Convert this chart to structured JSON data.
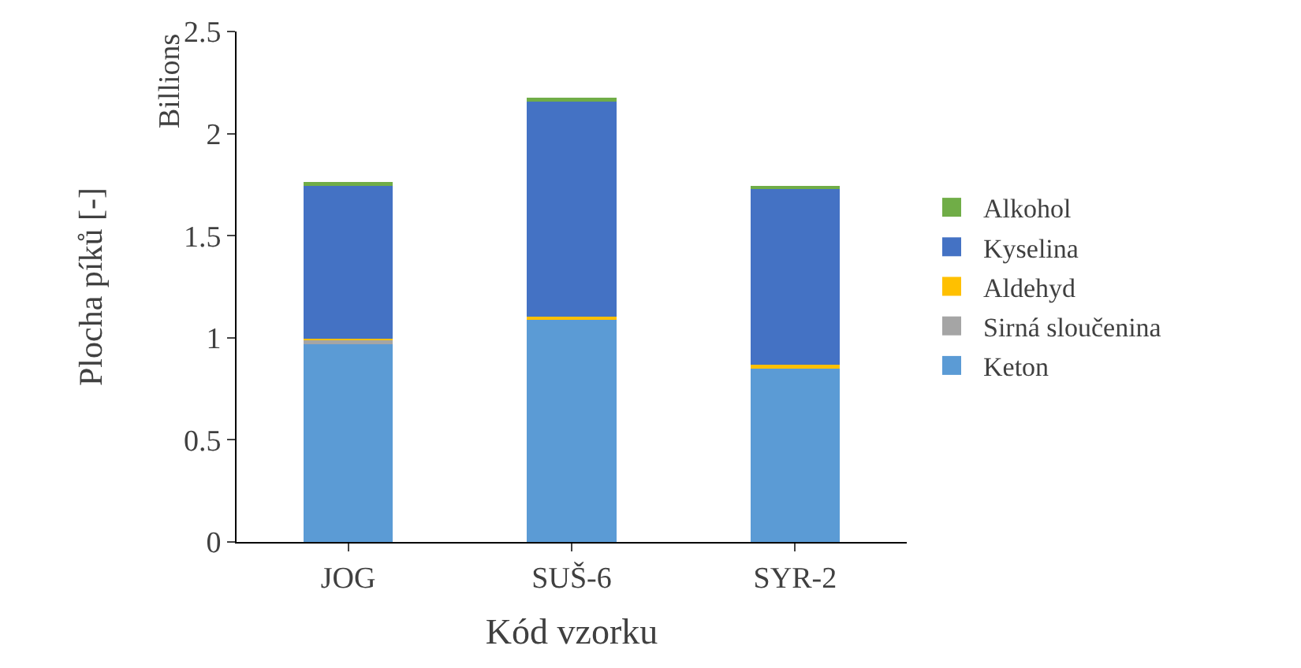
{
  "chart_data": {
    "type": "bar",
    "stacked": true,
    "xlabel": "Kód vzorku",
    "ylabel": "Plocha píků [-]",
    "annotations": [
      "Billions"
    ],
    "categories": [
      "JOG",
      "SUŠ-6",
      "SYR-2"
    ],
    "series": [
      {
        "name": "Keton",
        "color": "#5b9bd5",
        "values": [
          0.97,
          1.09,
          0.855
        ]
      },
      {
        "name": "Sirná sloučenina",
        "color": "#a5a5a5",
        "values": [
          0.02,
          null,
          null
        ]
      },
      {
        "name": "Aldehyd",
        "color": "#ffc000",
        "values": [
          0.005,
          0.015,
          0.015
        ]
      },
      {
        "name": "Kyselina",
        "color": "#4472c4",
        "values": [
          0.755,
          1.05,
          0.86
        ]
      },
      {
        "name": "Alkohol",
        "color": "#70ad47",
        "values": [
          0.015,
          0.02,
          0.015
        ]
      }
    ],
    "ylim": [
      0,
      2.5
    ],
    "yticks": [
      0,
      0.5,
      1,
      1.5,
      2,
      2.5
    ],
    "legend": "right"
  }
}
